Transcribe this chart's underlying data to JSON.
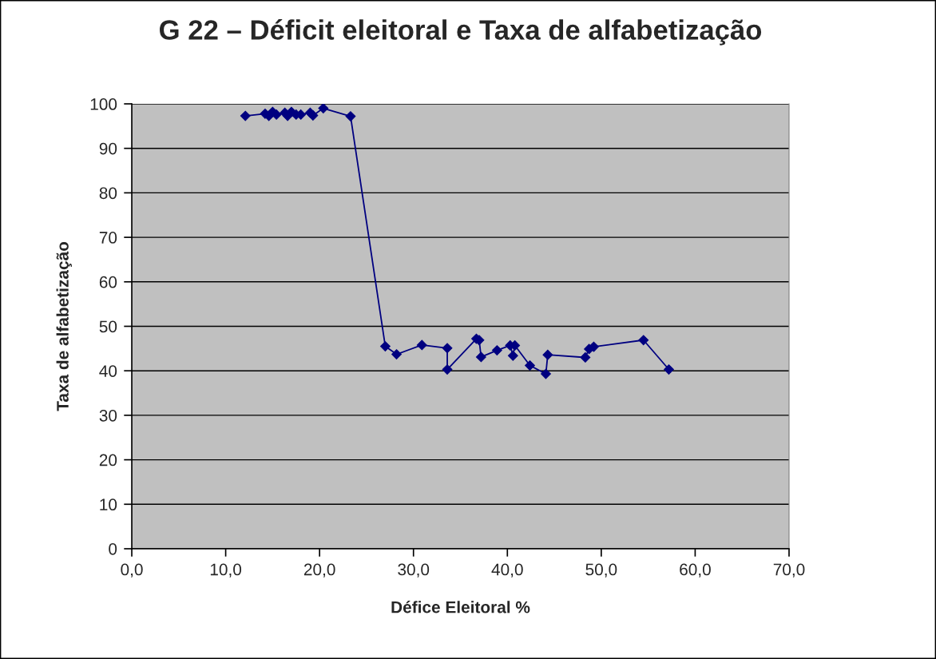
{
  "chart_data": {
    "type": "line",
    "title": "G 22 – Déficit eleitoral e Taxa de alfabetização",
    "xlabel": "Défice Eleitoral %",
    "ylabel": "Taxa de alfabetização",
    "x": [
      12.1,
      14.2,
      14.6,
      15.0,
      15.4,
      16.3,
      16.6,
      17.0,
      17.5,
      18.0,
      19.0,
      19.3,
      20.4,
      23.3,
      27.0,
      28.2,
      30.9,
      33.6,
      33.6,
      36.7,
      37.0,
      37.2,
      38.9,
      40.3,
      40.6,
      40.8,
      42.4,
      44.1,
      44.3,
      48.3,
      48.7,
      49.2,
      54.5,
      57.2
    ],
    "series": [
      {
        "color": "#000080",
        "values": [
          97.3,
          97.8,
          97.3,
          98.2,
          97.6,
          98.0,
          97.3,
          98.2,
          97.6,
          97.6,
          98.0,
          97.4,
          99.0,
          97.2,
          45.5,
          43.7,
          45.8,
          45.1,
          40.3,
          47.2,
          46.9,
          43.1,
          44.6,
          45.7,
          43.4,
          45.7,
          41.2,
          39.3,
          43.6,
          43.0,
          44.9,
          45.4,
          46.9,
          40.3
        ]
      }
    ],
    "xlim": [
      0,
      70
    ],
    "xticks": [
      {
        "value": 0,
        "label": "0,0"
      },
      {
        "value": 10,
        "label": "10,0"
      },
      {
        "value": 20,
        "label": "20,0"
      },
      {
        "value": 30,
        "label": "30,0"
      },
      {
        "value": 40,
        "label": "40,0"
      },
      {
        "value": 50,
        "label": "50,0"
      },
      {
        "value": 60,
        "label": "60,0"
      },
      {
        "value": 70,
        "label": "70,0"
      }
    ],
    "ylim": [
      0,
      100
    ],
    "yticks": [
      0,
      10,
      20,
      30,
      40,
      50,
      60,
      70,
      80,
      90,
      100
    ],
    "grid": "y",
    "marker": "diamond",
    "line_style": "solid"
  }
}
